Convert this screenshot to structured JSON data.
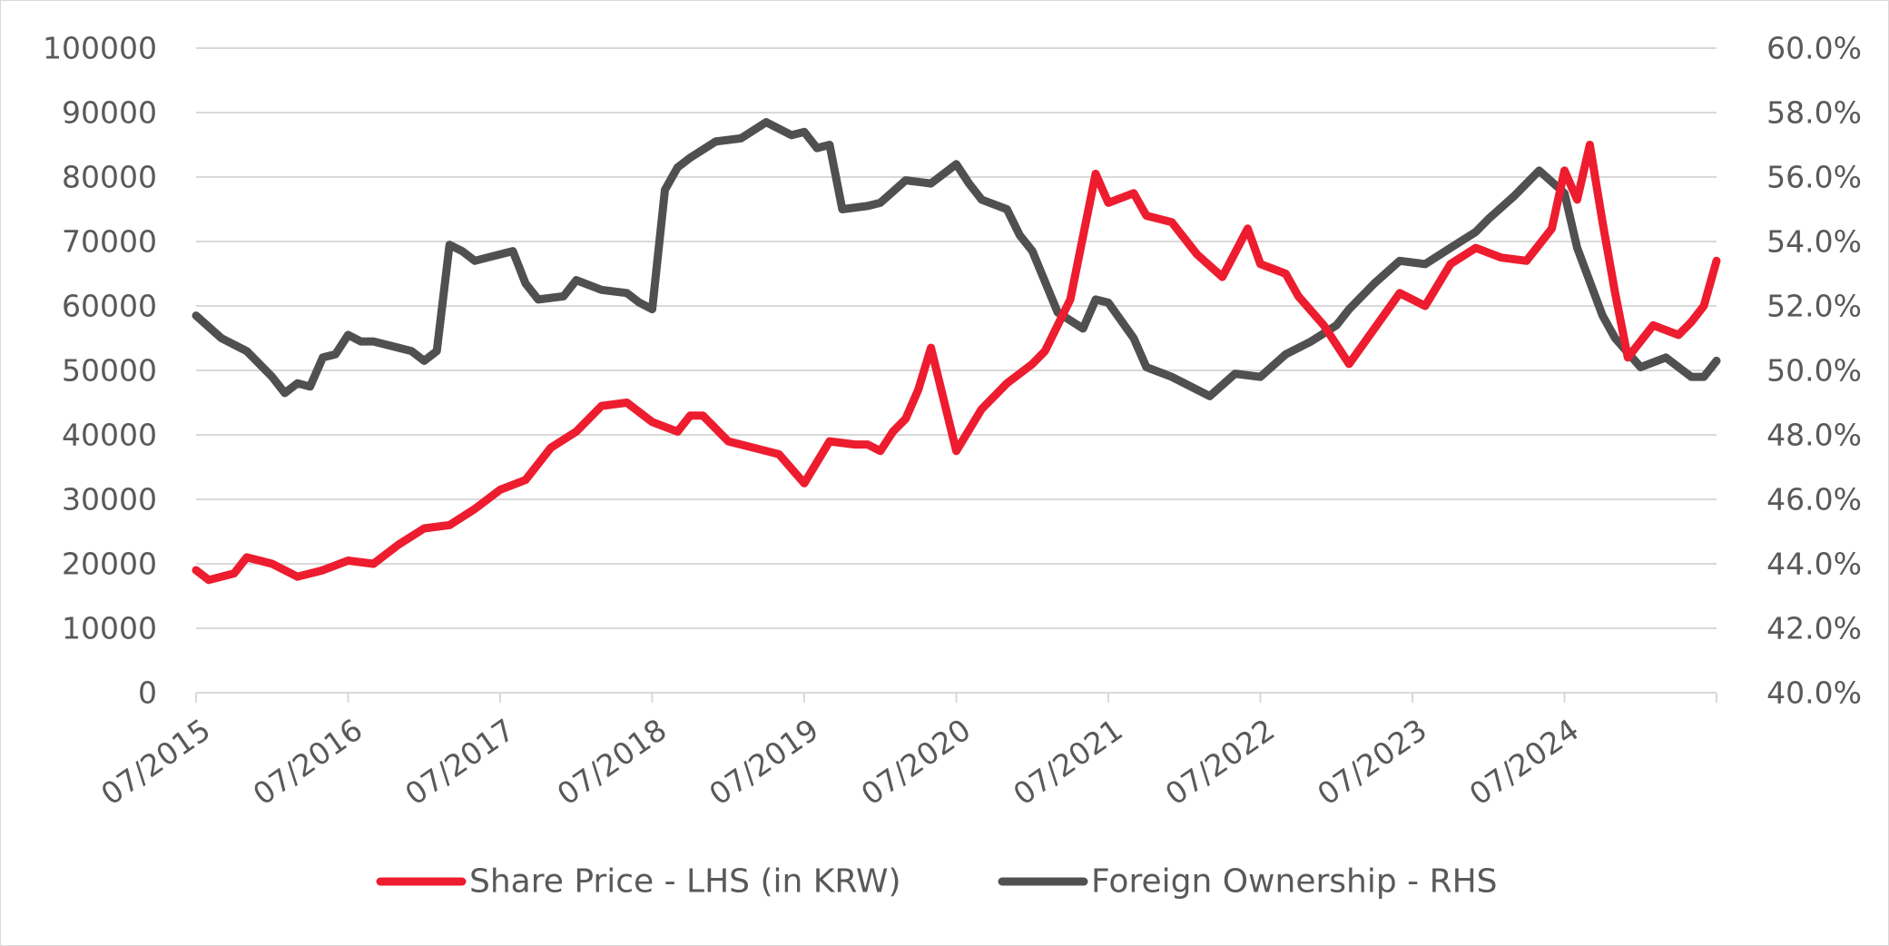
{
  "chart_data": {
    "type": "line",
    "x_axis": {
      "type": "date",
      "range": [
        "2015-07",
        "2025-07"
      ],
      "tick_labels": [
        "07/2015",
        "07/2016",
        "07/2017",
        "07/2018",
        "07/2019",
        "07/2020",
        "07/2021",
        "07/2022",
        "07/2023",
        "07/2024"
      ]
    },
    "y_axis_left": {
      "range": [
        0,
        100000
      ],
      "tick_labels": [
        "0",
        "10000",
        "20000",
        "30000",
        "40000",
        "50000",
        "60000",
        "70000",
        "80000",
        "90000",
        "100000"
      ]
    },
    "y_axis_right": {
      "range": [
        40,
        60
      ],
      "tick_labels": [
        "40.0%",
        "42.0%",
        "44.0%",
        "46.0%",
        "48.0%",
        "50.0%",
        "52.0%",
        "54.0%",
        "56.0%",
        "58.0%",
        "60.0%"
      ]
    },
    "grid": "horizontal",
    "legend_position": "bottom",
    "series": [
      {
        "name": "Share Price - LHS (in KRW)",
        "axis": "left",
        "color": "#ed1c2e",
        "x": [
          "2015-07",
          "2015-08",
          "2015-10",
          "2015-11",
          "2016-01",
          "2016-03",
          "2016-05",
          "2016-07",
          "2016-09",
          "2016-11",
          "2017-01",
          "2017-03",
          "2017-05",
          "2017-07",
          "2017-09",
          "2017-11",
          "2018-01",
          "2018-03",
          "2018-05",
          "2018-07",
          "2018-09",
          "2018-10",
          "2018-11",
          "2019-01",
          "2019-03",
          "2019-05",
          "2019-07",
          "2019-09",
          "2019-11",
          "2019-12",
          "2020-01",
          "2020-02",
          "2020-03",
          "2020-04",
          "2020-05",
          "2020-07",
          "2020-09",
          "2020-10",
          "2020-11",
          "2021-01",
          "2021-02",
          "2021-04",
          "2021-06",
          "2021-07",
          "2021-09",
          "2021-10",
          "2021-12",
          "2022-02",
          "2022-04",
          "2022-06",
          "2022-07",
          "2022-09",
          "2022-10",
          "2022-12",
          "2023-02",
          "2023-04",
          "2023-06",
          "2023-08",
          "2023-10",
          "2023-12",
          "2024-02",
          "2024-04",
          "2024-05",
          "2024-06",
          "2024-07",
          "2024-08",
          "2024-09",
          "2024-10",
          "2024-11",
          "2024-12",
          "2025-02",
          "2025-04",
          "2025-05",
          "2025-06",
          "2025-07"
        ],
        "y": [
          19000,
          17500,
          18500,
          21000,
          20000,
          18000,
          19000,
          20500,
          20000,
          23000,
          25500,
          26000,
          28500,
          31500,
          33000,
          38000,
          40500,
          44500,
          45000,
          42000,
          40500,
          43000,
          43000,
          39000,
          38000,
          37000,
          32500,
          39000,
          38500,
          38500,
          37500,
          40500,
          42500,
          47000,
          53500,
          37500,
          44000,
          46000,
          48000,
          51000,
          53000,
          61000,
          80500,
          76000,
          77500,
          74000,
          73000,
          68000,
          64500,
          72000,
          66500,
          65000,
          61500,
          57000,
          51000,
          56500,
          62000,
          60000,
          66500,
          69000,
          67500,
          67000,
          69500,
          72000,
          81000,
          76500,
          85000,
          73000,
          62000,
          52000,
          57000,
          55500,
          57500,
          60000,
          67000
        ]
      },
      {
        "name": "Foreign Ownership - RHS",
        "axis": "right",
        "color": "#505050",
        "x": [
          "2015-07",
          "2015-09",
          "2015-11",
          "2016-01",
          "2016-02",
          "2016-03",
          "2016-04",
          "2016-05",
          "2016-06",
          "2016-07",
          "2016-08",
          "2016-09",
          "2016-11",
          "2016-12",
          "2017-01",
          "2017-02",
          "2017-03",
          "2017-04",
          "2017-05",
          "2017-06",
          "2017-08",
          "2017-09",
          "2017-10",
          "2017-12",
          "2018-01",
          "2018-03",
          "2018-05",
          "2018-06",
          "2018-07",
          "2018-08",
          "2018-09",
          "2018-10",
          "2018-12",
          "2019-02",
          "2019-04",
          "2019-06",
          "2019-07",
          "2019-08",
          "2019-09",
          "2019-10",
          "2019-12",
          "2020-01",
          "2020-03",
          "2020-05",
          "2020-07",
          "2020-08",
          "2020-09",
          "2020-11",
          "2020-12",
          "2021-01",
          "2021-03",
          "2021-05",
          "2021-06",
          "2021-07",
          "2021-09",
          "2021-10",
          "2021-12",
          "2022-01",
          "2022-03",
          "2022-05",
          "2022-07",
          "2022-09",
          "2022-11",
          "2023-01",
          "2023-02",
          "2023-04",
          "2023-06",
          "2023-08",
          "2023-10",
          "2023-12",
          "2024-01",
          "2024-03",
          "2024-05",
          "2024-07",
          "2024-08",
          "2024-10",
          "2024-11",
          "2025-01",
          "2025-03",
          "2025-05",
          "2025-06",
          "2025-07"
        ],
        "y": [
          51.7,
          51.0,
          50.6,
          49.8,
          49.3,
          49.6,
          49.5,
          50.4,
          50.5,
          51.1,
          50.9,
          50.9,
          50.7,
          50.6,
          50.3,
          50.6,
          53.9,
          53.7,
          53.4,
          53.5,
          53.7,
          52.7,
          52.2,
          52.3,
          52.8,
          52.5,
          52.4,
          52.1,
          51.9,
          55.6,
          56.3,
          56.6,
          57.1,
          57.2,
          57.7,
          57.3,
          57.4,
          56.9,
          57.0,
          55.0,
          55.1,
          55.2,
          55.9,
          55.8,
          56.4,
          55.8,
          55.3,
          55.0,
          54.2,
          53.7,
          51.8,
          51.3,
          52.2,
          52.1,
          51.0,
          50.1,
          49.8,
          49.6,
          49.2,
          49.9,
          49.8,
          50.5,
          50.9,
          51.4,
          51.9,
          52.7,
          53.4,
          53.3,
          53.8,
          54.3,
          54.7,
          55.4,
          56.2,
          55.5,
          53.8,
          51.7,
          51.0,
          50.1,
          50.4,
          49.8,
          49.8,
          50.3
        ]
      }
    ]
  }
}
